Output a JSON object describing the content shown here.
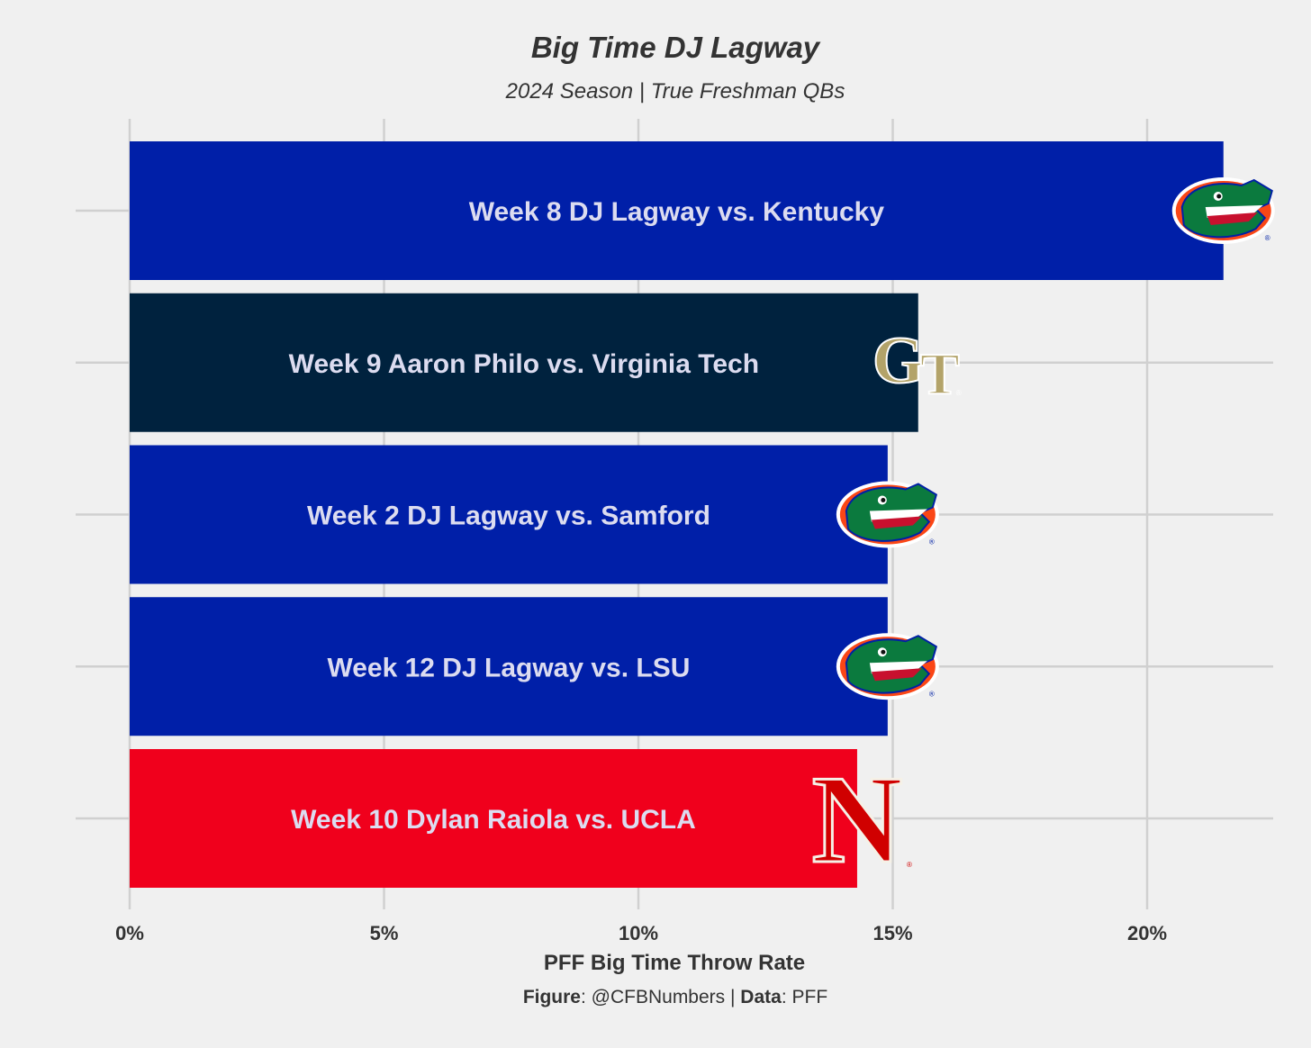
{
  "chart_data": {
    "type": "bar",
    "orientation": "horizontal",
    "title": "Big Time DJ Lagway",
    "subtitle": "2024 Season | True Freshman QBs",
    "xlabel": "PFF Big Time Throw Rate",
    "ylabel": "",
    "xlim": [
      0,
      22.5
    ],
    "x_ticks": [
      0,
      5,
      10,
      15,
      20
    ],
    "x_tick_labels": [
      "0%",
      "5%",
      "10%",
      "15%",
      "20%"
    ],
    "grid": true,
    "legend": "none",
    "bars": [
      {
        "label": "Week 8 DJ Lagway vs. Kentucky",
        "value": 21.5,
        "color": "#001fa8",
        "logo": "florida-gators-logo"
      },
      {
        "label": "Week 9 Aaron Philo vs. Virginia Tech",
        "value": 15.5,
        "color": "#00223e",
        "logo": "georgia-tech-logo"
      },
      {
        "label": "Week 2 DJ Lagway vs. Samford",
        "value": 14.9,
        "color": "#001fa8",
        "logo": "florida-gators-logo"
      },
      {
        "label": "Week 12 DJ Lagway vs. LSU",
        "value": 14.9,
        "color": "#001fa8",
        "logo": "florida-gators-logo"
      },
      {
        "label": "Week 10 Dylan Raiola vs. UCLA",
        "value": 14.3,
        "color": "#f0001c",
        "logo": "nebraska-logo"
      }
    ]
  },
  "caption": {
    "figure_label": "Figure",
    "figure_value": ": @CFBNumbers | ",
    "data_label": "Data",
    "data_value": ": PFF"
  },
  "colors": {
    "background": "#f0f0f0",
    "grid": "#d0d0d0",
    "text": "#333333",
    "bar_label_text": "#dcdcf0"
  }
}
